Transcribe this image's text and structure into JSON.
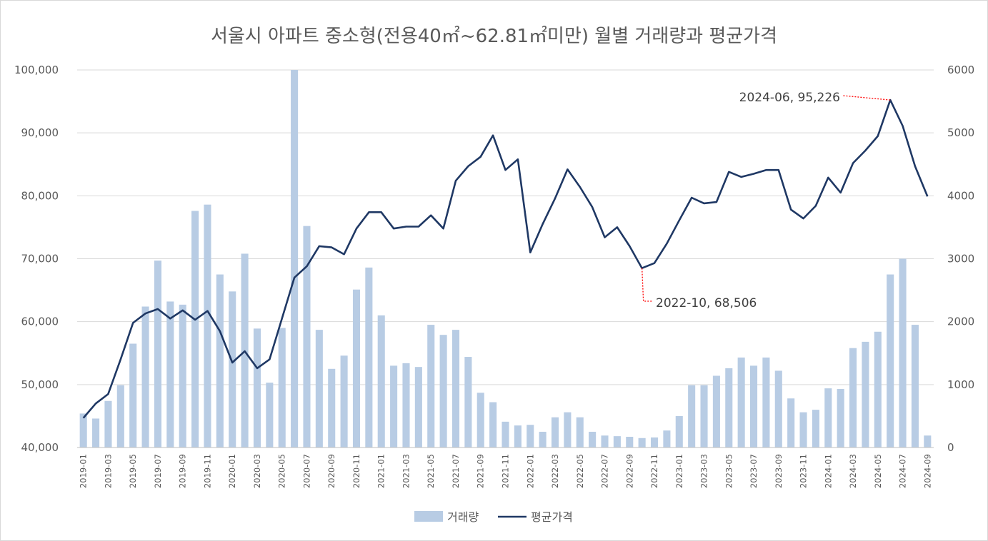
{
  "chart_data": {
    "type": "bar+line",
    "title": "서울시 아파트 중소형(전용40㎡~62.81㎡미만)  월별 거래량과 평균가격",
    "categories": [
      "2019-01",
      "2019-02",
      "2019-03",
      "2019-04",
      "2019-05",
      "2019-06",
      "2019-07",
      "2019-08",
      "2019-09",
      "2019-10",
      "2019-11",
      "2019-12",
      "2020-01",
      "2020-02",
      "2020-03",
      "2020-04",
      "2020-05",
      "2020-06",
      "2020-07",
      "2020-08",
      "2020-09",
      "2020-10",
      "2020-11",
      "2020-12",
      "2021-01",
      "2021-02",
      "2021-03",
      "2021-04",
      "2021-05",
      "2021-06",
      "2021-07",
      "2021-08",
      "2021-09",
      "2021-10",
      "2021-11",
      "2021-12",
      "2022-01",
      "2022-02",
      "2022-03",
      "2022-04",
      "2022-05",
      "2022-06",
      "2022-07",
      "2022-08",
      "2022-09",
      "2022-10",
      "2022-11",
      "2022-12",
      "2023-01",
      "2023-02",
      "2023-03",
      "2023-04",
      "2023-05",
      "2023-06",
      "2023-07",
      "2023-08",
      "2023-09",
      "2023-10",
      "2023-11",
      "2023-12",
      "2024-01",
      "2024-02",
      "2024-03",
      "2024-04",
      "2024-05",
      "2024-06",
      "2024-07",
      "2024-08",
      "2024-09"
    ],
    "x_tick_labels": [
      "2019-01",
      "2019-03",
      "2019-05",
      "2019-07",
      "2019-09",
      "2019-11",
      "2020-01",
      "2020-03",
      "2020-05",
      "2020-07",
      "2020-09",
      "2020-11",
      "2021-01",
      "2021-03",
      "2021-05",
      "2021-07",
      "2021-09",
      "2021-11",
      "2022-01",
      "2022-03",
      "2022-05",
      "2022-07",
      "2022-09",
      "2022-11",
      "2023-01",
      "2023-03",
      "2023-05",
      "2023-07",
      "2023-09",
      "2023-11",
      "2024-01",
      "2024-03",
      "2024-05",
      "2024-07",
      "2024-09"
    ],
    "series": [
      {
        "name": "거래량",
        "type": "bar",
        "axis": "right",
        "color": "#b8cce4",
        "values": [
          540,
          460,
          740,
          990,
          1650,
          2240,
          2970,
          2320,
          2270,
          3760,
          3860,
          2750,
          2480,
          3080,
          1890,
          1030,
          1900,
          6000,
          3520,
          1870,
          1250,
          1460,
          2510,
          2860,
          2100,
          1300,
          1340,
          1280,
          1950,
          1790,
          1870,
          1440,
          870,
          720,
          410,
          350,
          360,
          250,
          480,
          560,
          480,
          250,
          190,
          180,
          170,
          150,
          160,
          270,
          500,
          990,
          990,
          1140,
          1260,
          1430,
          1300,
          1430,
          1220,
          780,
          560,
          600,
          940,
          930,
          1580,
          1680,
          1840,
          2750,
          3000,
          1950,
          190
        ]
      },
      {
        "name": "평균가격",
        "type": "line",
        "axis": "left",
        "color": "#1f3864",
        "values": [
          44700,
          47000,
          48500,
          54000,
          59800,
          61300,
          62000,
          60500,
          61800,
          60300,
          61700,
          58500,
          53500,
          55300,
          52600,
          54000,
          60500,
          67000,
          68800,
          72000,
          71800,
          70700,
          74800,
          77400,
          77400,
          74800,
          75100,
          75100,
          76900,
          74800,
          82400,
          84700,
          86200,
          89600,
          84100,
          85800,
          71000,
          75500,
          79600,
          84200,
          81400,
          78200,
          73400,
          75000,
          72000,
          68506,
          69300,
          72400,
          76100,
          79700,
          78800,
          79000,
          83800,
          83000,
          83500,
          84100,
          84100,
          77800,
          76400,
          78400,
          82900,
          80500,
          85200,
          87200,
          89500,
          95226,
          91100,
          84700,
          79900
        ]
      }
    ],
    "y_left": {
      "min": 40000,
      "max": 100000,
      "step": 10000,
      "tick_labels": [
        "40,000",
        "50,000",
        "60,000",
        "70,000",
        "80,000",
        "90,000",
        "100,000"
      ]
    },
    "y_right": {
      "min": 0,
      "max": 6000,
      "step": 1000,
      "tick_labels": [
        "0",
        "1000",
        "2000",
        "3000",
        "4000",
        "5000",
        "6000"
      ]
    },
    "annotations": [
      {
        "label": "2024-06, 95,226",
        "category": "2024-06",
        "value": 95226
      },
      {
        "label": "2022-10, 68,506",
        "category": "2022-10",
        "value": 68506
      }
    ],
    "annotation_color": "#ff0000",
    "grid": true,
    "legend_position": "bottom",
    "legend": [
      "거래량",
      "평균가격"
    ]
  }
}
